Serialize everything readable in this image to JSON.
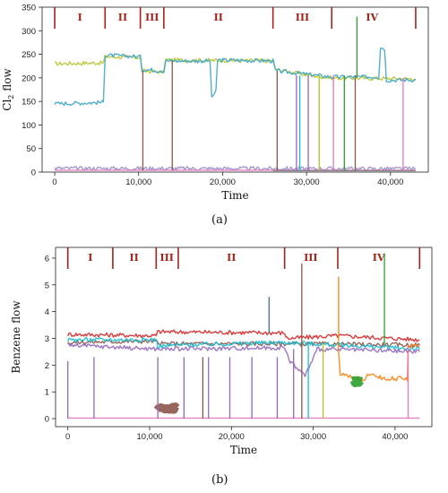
{
  "chart_data": [
    {
      "type": "line",
      "caption": "(a)",
      "xlabel": "Time",
      "ylabel": "Cl",
      "ylabel_sub": "2",
      "ylabel_rest": " flow",
      "xlim": [
        -1500,
        44500
      ],
      "ylim": [
        0,
        350
      ],
      "xticks": [
        0,
        10000,
        20000,
        30000,
        40000
      ],
      "xtick_labels": [
        "0",
        "10,000",
        "20,000",
        "30,000",
        "40,000"
      ],
      "yticks": [
        0,
        50,
        100,
        150,
        200,
        250,
        300,
        350
      ],
      "ytick_labels": [
        "0",
        "50",
        "100",
        "150",
        "200",
        "250",
        "300",
        "350"
      ],
      "grid": false,
      "phase_boundaries": [
        0,
        6000,
        10200,
        13000,
        26000,
        33000,
        43000
      ],
      "phases": [
        {
          "label": "I",
          "x": 3000
        },
        {
          "label": "II",
          "x": 8100
        },
        {
          "label": "III",
          "x": 11600
        },
        {
          "label": "II",
          "x": 19500
        },
        {
          "label": "III",
          "x": 29500
        },
        {
          "label": "IV",
          "x": 37800
        }
      ],
      "series": [
        {
          "color": "#b8c52e",
          "values": [
            [
              0,
              230
            ],
            [
              5800,
              232
            ],
            [
              6000,
              245
            ],
            [
              10200,
              243
            ],
            [
              10400,
              215
            ],
            [
              13000,
              212
            ],
            [
              13200,
              238
            ],
            [
              26000,
              236
            ],
            [
              26300,
              218
            ],
            [
              30500,
              205
            ],
            [
              33000,
              200
            ],
            [
              43000,
              198
            ]
          ]
        },
        {
          "color": "#3fa6c9",
          "values": [
            [
              0,
              145
            ],
            [
              5800,
              148
            ],
            [
              6000,
              248
            ],
            [
              10200,
              245
            ],
            [
              10400,
              218
            ],
            [
              13000,
              215
            ],
            [
              13200,
              236
            ],
            [
              18500,
              236
            ],
            [
              18700,
              160
            ],
            [
              19200,
              170
            ],
            [
              19400,
              238
            ],
            [
              26000,
              236
            ],
            [
              26300,
              215
            ],
            [
              33000,
              202
            ],
            [
              38600,
              202
            ],
            [
              38800,
              265
            ],
            [
              39300,
              262
            ],
            [
              39500,
              195
            ],
            [
              43000,
              196
            ]
          ]
        },
        {
          "color": "#9a8fc4",
          "values": [
            [
              0,
              8
            ],
            [
              43000,
              7
            ]
          ]
        },
        {
          "color": "#e377c2",
          "values": [
            [
              0,
              4
            ],
            [
              43000,
              4
            ]
          ]
        },
        {
          "color": "#7f7f7f",
          "values": [
            [
              26000,
              3
            ],
            [
              43000,
              3
            ]
          ]
        }
      ],
      "spikes": [
        {
          "color": "#8c564b",
          "x": 10500,
          "y0": 3,
          "y1": 215
        },
        {
          "color": "#8c564b",
          "x": 14000,
          "y0": 3,
          "y1": 236
        },
        {
          "color": "#8c564b",
          "x": 26500,
          "y0": 3,
          "y1": 215
        },
        {
          "color": "#9467bd",
          "x": 28800,
          "y0": 3,
          "y1": 205
        },
        {
          "color": "#17becf",
          "x": 29200,
          "y0": 3,
          "y1": 205
        },
        {
          "color": "#9467bd",
          "x": 30200,
          "y0": 3,
          "y1": 205
        },
        {
          "color": "#bcbd22",
          "x": 31500,
          "y0": 3,
          "y1": 205
        },
        {
          "color": "#e377c2",
          "x": 33200,
          "y0": 3,
          "y1": 205
        },
        {
          "color": "#2ca02c",
          "x": 34500,
          "y0": 3,
          "y1": 205
        },
        {
          "color": "#8c564b",
          "x": 35800,
          "y0": 3,
          "y1": 205
        },
        {
          "color": "#2ca02c",
          "x": 36000,
          "y0": 200,
          "y1": 330
        },
        {
          "color": "#e377c2",
          "x": 41500,
          "y0": 3,
          "y1": 200
        }
      ]
    },
    {
      "type": "line",
      "caption": "(b)",
      "xlabel": "Time",
      "ylabel": "Benzene flow",
      "xlim": [
        -1500,
        44500
      ],
      "ylim": [
        -0.3,
        6.4
      ],
      "xticks": [
        0,
        10000,
        20000,
        30000,
        40000
      ],
      "xtick_labels": [
        "0",
        "10,000",
        "20,000",
        "30,000",
        "40,000"
      ],
      "yticks": [
        0,
        1,
        2,
        3,
        4,
        5,
        6
      ],
      "ytick_labels": [
        "0",
        "1",
        "2",
        "3",
        "4",
        "5",
        "6"
      ],
      "grid": false,
      "phase_boundaries": [
        0,
        5500,
        10800,
        13500,
        26500,
        33000,
        43000
      ],
      "phases": [
        {
          "label": "I",
          "x": 2750
        },
        {
          "label": "II",
          "x": 8100
        },
        {
          "label": "III",
          "x": 12100
        },
        {
          "label": "II",
          "x": 20000
        },
        {
          "label": "III",
          "x": 29700
        },
        {
          "label": "IV",
          "x": 38000
        }
      ],
      "series": [
        {
          "color": "#d62728",
          "values": [
            [
              0,
              3.15
            ],
            [
              10800,
              3.1
            ],
            [
              11000,
              3.25
            ],
            [
              26500,
              3.2
            ],
            [
              26800,
              3.0
            ],
            [
              33000,
              3.1
            ],
            [
              43000,
              2.95
            ]
          ]
        },
        {
          "color": "#8c564b",
          "values": [
            [
              0,
              2.85
            ],
            [
              10800,
              2.9
            ],
            [
              11000,
              2.8
            ],
            [
              26500,
              2.8
            ],
            [
              43000,
              2.75
            ]
          ]
        },
        {
          "color": "#17becf",
          "values": [
            [
              0,
              2.95
            ],
            [
              10800,
              2.95
            ],
            [
              11000,
              2.7
            ],
            [
              13500,
              2.75
            ],
            [
              26500,
              2.85
            ],
            [
              30000,
              2.8
            ],
            [
              43000,
              2.6
            ]
          ]
        },
        {
          "color": "#9467bd",
          "values": [
            [
              0,
              2.75
            ],
            [
              11000,
              2.6
            ],
            [
              26500,
              2.65
            ],
            [
              27000,
              2.2
            ],
            [
              29000,
              1.6
            ],
            [
              30500,
              2.6
            ],
            [
              43000,
              2.5
            ]
          ]
        },
        {
          "color": "#ff7f0e",
          "values": [
            [
              33000,
              2.9
            ],
            [
              33300,
              1.7
            ],
            [
              36000,
              1.4
            ],
            [
              37000,
              1.7
            ],
            [
              38500,
              1.5
            ],
            [
              41500,
              1.5
            ],
            [
              41600,
              2.7
            ],
            [
              43000,
              2.7
            ]
          ]
        },
        {
          "color": "#8c564b",
          "values": [
            [
              10900,
              0.4
            ],
            [
              13300,
              0.4
            ]
          ]
        },
        {
          "color": "#2ca02c",
          "values": [
            [
              34800,
              1.4
            ],
            [
              35900,
              1.4
            ]
          ]
        },
        {
          "color": "#e377c2",
          "values": [
            [
              0,
              0.02
            ],
            [
              43000,
              0.02
            ]
          ]
        }
      ],
      "spikes": [
        {
          "color": "#9467bd",
          "x": 0,
          "y0": 0,
          "y1": 2.15
        },
        {
          "color": "#9467bd",
          "x": 3200,
          "y0": 0,
          "y1": 2.3
        },
        {
          "color": "#9467bd",
          "x": 11000,
          "y0": 0,
          "y1": 2.3
        },
        {
          "color": "#9467bd",
          "x": 14200,
          "y0": 0,
          "y1": 2.3
        },
        {
          "color": "#8c564b",
          "x": 16500,
          "y0": 0,
          "y1": 2.3
        },
        {
          "color": "#9467bd",
          "x": 17200,
          "y0": 0,
          "y1": 2.3
        },
        {
          "color": "#9467bd",
          "x": 19800,
          "y0": 0,
          "y1": 2.3
        },
        {
          "color": "#9467bd",
          "x": 22500,
          "y0": 0,
          "y1": 2.3
        },
        {
          "color": "#9467bd",
          "x": 25600,
          "y0": 0,
          "y1": 2.3
        },
        {
          "color": "#3a6fb0",
          "x": 24600,
          "y0": 3.2,
          "y1": 4.55
        },
        {
          "color": "#9467bd",
          "x": 27600,
          "y0": 0,
          "y1": 2.6
        },
        {
          "color": "#8c564b",
          "x": 28600,
          "y0": 0,
          "y1": 5.8
        },
        {
          "color": "#17becf",
          "x": 29400,
          "y0": 0,
          "y1": 2.8
        },
        {
          "color": "#bcbd22",
          "x": 31200,
          "y0": 0,
          "y1": 2.8
        },
        {
          "color": "#ff7f0e",
          "x": 33100,
          "y0": 2.9,
          "y1": 5.3
        },
        {
          "color": "#2ca02c",
          "x": 38700,
          "y0": 2.8,
          "y1": 6.15
        },
        {
          "color": "#e377c2",
          "x": 41600,
          "y0": 0,
          "y1": 2.7
        }
      ]
    }
  ]
}
